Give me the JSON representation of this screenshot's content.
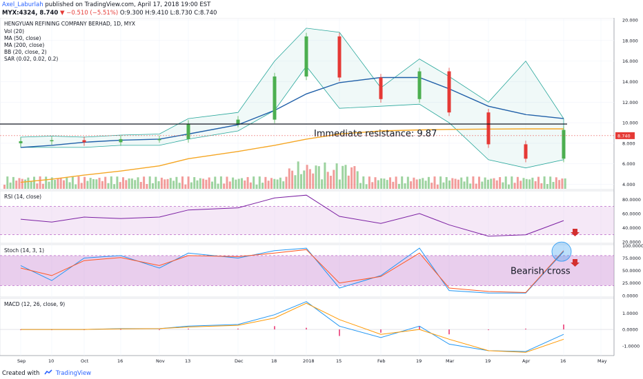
{
  "header": {
    "author": "Axel_Laburlah",
    "published": "published on TradingView.com, April 17, 2018 19:00 EST",
    "symbol": "MYX:4324, 8.740",
    "change": "−0.510 (−5.51%)",
    "ohlc": "O:9.300 H:9.410 L:8.730 C:8.740"
  },
  "footer": {
    "created_with": "Created with",
    "brand": "TradingView"
  },
  "price_pane": {
    "title": "HENGYUAN REFINING COMPANY BERHAD, 1D, MYX",
    "indicators": [
      "Vol (20)",
      "MA (50, close)",
      "MA (200, close)",
      "BB (20, close, 2)",
      "SAR (0.02, 0.02, 0.2)"
    ],
    "annotation": "Immediate resistance: 9.87",
    "price_tag": "8.740",
    "axis_labels": [
      "20.000",
      "18.000",
      "16.000",
      "14.000",
      "12.000",
      "10.000",
      "8.000",
      "6.000",
      "4.000"
    ]
  },
  "rsi_pane": {
    "title": "RSI (14, close)",
    "axis_labels": [
      "80.0000",
      "60.0000",
      "40.0000",
      "20.0000"
    ]
  },
  "stoch_pane": {
    "title": "Stoch (14, 3, 1)",
    "annotation": "Bearish cross",
    "axis_labels": [
      "100.0000",
      "75.0000",
      "50.0000",
      "25.0000",
      "0.0000"
    ]
  },
  "macd_pane": {
    "title": "MACD (12, 26, close, 9)",
    "axis_labels": [
      "1.0000",
      "0.0000",
      "-1.0000"
    ]
  },
  "x_labels": [
    "Sep",
    "10",
    "Oct",
    "16",
    "Nov",
    "13",
    "Dec",
    "18",
    "2018",
    "15",
    "Feb",
    "19",
    "Mar",
    "19",
    "Apr",
    "16",
    "May"
  ],
  "colors": {
    "up": "#4caf50",
    "down": "#e53935",
    "ma50": "#1f5fa8",
    "ma200": "#f5a623",
    "bb": "#26a69a",
    "rsi": "#7b1fa2",
    "stoch_k": "#2196f3",
    "stoch_d": "#ff5722",
    "macd": "#2196f3",
    "signal": "#ff9800",
    "band": "#e1bee7"
  },
  "chart_data": [
    {
      "type": "candlestick",
      "title": "HENGYUAN REFINING COMPANY BERHAD, 1D, MYX",
      "ylim": [
        3.5,
        20.2
      ],
      "y_axis": "right",
      "x": [
        "Sep",
        "10",
        "Oct",
        "16",
        "Nov",
        "13",
        "Dec",
        "18",
        "2018",
        "15",
        "Feb",
        "19",
        "Mar",
        "19",
        "Apr",
        "16"
      ],
      "close": [
        8.2,
        8.3,
        8.1,
        8.4,
        8.4,
        9.9,
        10.3,
        14.5,
        18.4,
        14.4,
        12.3,
        15.0,
        11.0,
        7.9,
        6.5,
        9.3
      ],
      "last_close": 8.74,
      "series": [
        {
          "name": "MA (50, close)",
          "values": [
            7.6,
            7.8,
            8.1,
            8.3,
            8.4,
            8.9,
            9.8,
            11.2,
            12.8,
            13.9,
            14.4,
            14.4,
            13.3,
            11.6,
            10.8,
            10.4
          ]
        },
        {
          "name": "MA (200, close)",
          "values": [
            4.2,
            4.5,
            4.9,
            5.3,
            5.8,
            6.5,
            7.2,
            7.8,
            8.4,
            8.9,
            9.2,
            9.3,
            9.35,
            9.38,
            9.4,
            9.4
          ]
        }
      ],
      "resistance": 9.87
    },
    {
      "type": "line",
      "title": "RSI (14, close)",
      "ylim": [
        18,
        92
      ],
      "band": [
        30,
        70
      ],
      "x": [
        "Sep",
        "10",
        "Oct",
        "16",
        "Nov",
        "13",
        "Dec",
        "18",
        "2018",
        "15",
        "Feb",
        "19",
        "Mar",
        "19",
        "Apr",
        "16"
      ],
      "values": [
        52,
        48,
        55,
        53,
        55,
        65,
        68,
        82,
        86,
        56,
        46,
        60,
        44,
        28,
        30,
        50
      ]
    },
    {
      "type": "line",
      "title": "Stoch (14, 3, 1)",
      "ylim": [
        -3,
        102
      ],
      "band": [
        20,
        80
      ],
      "x": [
        "Sep",
        "10",
        "Oct",
        "16",
        "Nov",
        "13",
        "Dec",
        "18",
        "2018",
        "15",
        "Feb",
        "19",
        "Mar",
        "19",
        "Apr",
        "16"
      ],
      "series": [
        {
          "name": "%K",
          "values": [
            60,
            30,
            75,
            80,
            55,
            85,
            75,
            90,
            95,
            15,
            40,
            95,
            10,
            5,
            5,
            88
          ]
        },
        {
          "name": "%D",
          "values": [
            55,
            40,
            70,
            76,
            60,
            80,
            78,
            85,
            92,
            25,
            38,
            85,
            15,
            8,
            6,
            90
          ]
        }
      ]
    },
    {
      "type": "line",
      "title": "MACD (12, 26, close, 9)",
      "ylim": [
        -1.6,
        1.9
      ],
      "x": [
        "Sep",
        "10",
        "Oct",
        "16",
        "Nov",
        "13",
        "Dec",
        "18",
        "2018",
        "15",
        "Feb",
        "19",
        "Mar",
        "19",
        "Apr",
        "16"
      ],
      "series": [
        {
          "name": "MACD",
          "values": [
            0.0,
            0.0,
            0.0,
            0.05,
            0.05,
            0.2,
            0.3,
            0.9,
            1.7,
            0.2,
            -0.5,
            0.2,
            -0.9,
            -1.3,
            -1.35,
            -0.3
          ]
        },
        {
          "name": "Signal",
          "values": [
            0.0,
            0.0,
            0.0,
            0.03,
            0.05,
            0.15,
            0.25,
            0.7,
            1.6,
            0.6,
            -0.3,
            0.0,
            -0.6,
            -1.3,
            -1.4,
            -0.6
          ]
        }
      ]
    }
  ]
}
